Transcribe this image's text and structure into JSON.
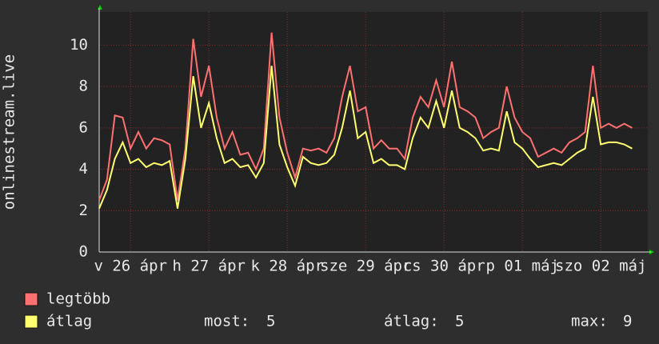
{
  "chart_data": {
    "type": "line",
    "ylabel": "onlinestream.live",
    "x": [
      0,
      1,
      2,
      3,
      4,
      5,
      6,
      7,
      8,
      9,
      10,
      11,
      12,
      13,
      14,
      15,
      16,
      17,
      18,
      19,
      20,
      21,
      22,
      23,
      24,
      25,
      26,
      27,
      28,
      29,
      30,
      31,
      32,
      33,
      34,
      35,
      36,
      37,
      38,
      39,
      40,
      41,
      42,
      43,
      44,
      45,
      46,
      47,
      48,
      49,
      50,
      51,
      52,
      53,
      54,
      55,
      56,
      57,
      58,
      59,
      60,
      61,
      62,
      63,
      64,
      65,
      66,
      67,
      68
    ],
    "series": [
      {
        "name": "legtöbb",
        "color": "#ff7070",
        "values": [
          2.5,
          3.5,
          6.6,
          6.5,
          5.0,
          5.8,
          5.0,
          5.5,
          5.4,
          5.2,
          2.5,
          5.0,
          10.3,
          7.5,
          9.0,
          6.5,
          5.0,
          5.8,
          4.7,
          4.8,
          4.0,
          5.0,
          10.6,
          6.5,
          4.8,
          3.6,
          5.0,
          4.9,
          5.0,
          4.8,
          5.5,
          7.5,
          9.0,
          6.8,
          7.0,
          5.0,
          5.4,
          5.0,
          5.0,
          4.5,
          6.5,
          7.5,
          7.0,
          8.3,
          7.0,
          9.2,
          7.0,
          6.8,
          6.5,
          5.5,
          5.8,
          6.0,
          8.0,
          6.5,
          5.8,
          5.5,
          4.6,
          4.8,
          5.0,
          4.8,
          5.3,
          5.5,
          5.8,
          9.0,
          6.0,
          6.2,
          6.0,
          6.2,
          6.0
        ]
      },
      {
        "name": "átlag",
        "color": "#ffff70",
        "values": [
          2.1,
          3.0,
          4.5,
          5.3,
          4.3,
          4.5,
          4.1,
          4.3,
          4.2,
          4.4,
          2.1,
          4.5,
          8.5,
          6.0,
          7.2,
          5.5,
          4.3,
          4.5,
          4.1,
          4.2,
          3.6,
          4.3,
          9.0,
          5.2,
          4.1,
          3.2,
          4.6,
          4.3,
          4.2,
          4.3,
          4.7,
          6.0,
          7.8,
          5.5,
          5.8,
          4.3,
          4.5,
          4.2,
          4.2,
          4.0,
          5.5,
          6.5,
          6.0,
          7.3,
          6.0,
          7.8,
          6.0,
          5.8,
          5.5,
          4.9,
          5.0,
          4.9,
          6.8,
          5.3,
          5.0,
          4.5,
          4.1,
          4.2,
          4.3,
          4.2,
          4.5,
          4.8,
          5.0,
          7.5,
          5.2,
          5.3,
          5.3,
          5.2,
          5.0
        ]
      }
    ],
    "xlim": [
      0,
      70
    ],
    "xticks": [
      {
        "value": 4,
        "label": "v 26 ápr"
      },
      {
        "value": 14,
        "label": "h 27 ápr"
      },
      {
        "value": 24,
        "label": "k 28 ápr"
      },
      {
        "value": 34,
        "label": "sze 29 ápr"
      },
      {
        "value": 44,
        "label": "cs 30 ápr"
      },
      {
        "value": 54,
        "label": "p 01 máj"
      },
      {
        "value": 64,
        "label": "szo 02 máj"
      }
    ],
    "ylim": [
      0,
      11.6
    ],
    "yticks": [
      0,
      2,
      4,
      6,
      8,
      10
    ],
    "grid": true,
    "stats": [
      {
        "label": "most:",
        "value": 5
      },
      {
        "label": "átlag:",
        "value": 5
      },
      {
        "label": "max:",
        "value": 9
      }
    ]
  }
}
